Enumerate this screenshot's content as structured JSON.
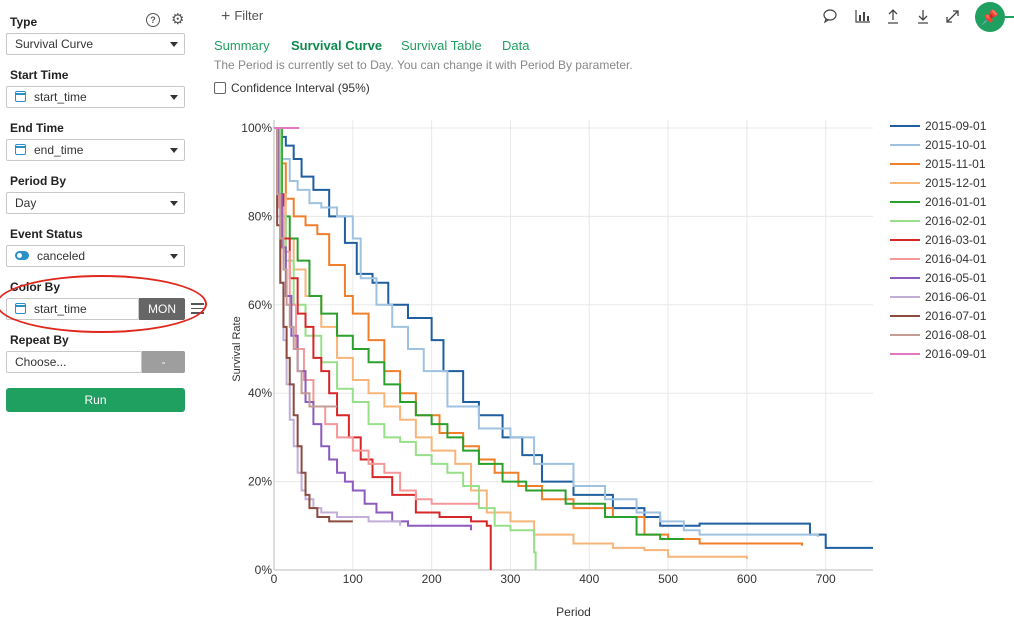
{
  "sidebar": {
    "type": {
      "label": "Type",
      "value": "Survival Curve"
    },
    "start_time": {
      "label": "Start Time",
      "value": "start_time"
    },
    "end_time": {
      "label": "End Time",
      "value": "end_time"
    },
    "period_by": {
      "label": "Period By",
      "value": "Day"
    },
    "event_status": {
      "label": "Event Status",
      "value": "canceled"
    },
    "color_by": {
      "label": "Color By",
      "value": "start_time",
      "unit": "MON"
    },
    "repeat_by": {
      "label": "Repeat By",
      "placeholder": "Choose...",
      "btn": "-"
    },
    "run_label": "Run"
  },
  "toolbar": {
    "filter_label": "Filter"
  },
  "tabs": [
    "Summary",
    "Survival Curve",
    "Survival Table",
    "Data"
  ],
  "active_tab": "Survival Curve",
  "info_text": "The Period is currently set to Day. You can change it with Period By parameter.",
  "confidence_label": "Confidence Interval (95%)",
  "icons": [
    "help-icon",
    "gear-icon",
    "plus-icon",
    "comment-icon",
    "chart-icon",
    "upload-icon",
    "download-icon",
    "expand-icon",
    "pin-icon",
    "menu-icon",
    "calendar-icon",
    "toggle-icon"
  ],
  "chart_data": {
    "type": "line",
    "xlabel": "Period",
    "ylabel": "Survival Rate",
    "xlim": [
      0,
      760
    ],
    "ylim": [
      0,
      1
    ],
    "xticks": [
      0,
      100,
      200,
      300,
      400,
      500,
      600,
      700
    ],
    "yticks": [
      0,
      0.2,
      0.4,
      0.6,
      0.8,
      1.0
    ],
    "ytick_labels": [
      "0%",
      "20%",
      "40%",
      "60%",
      "80%",
      "100%"
    ],
    "grid": true,
    "legend": "right",
    "series": [
      {
        "name": "2015-09-01",
        "color": "#1f5fa0",
        "points": [
          [
            0,
            1.0
          ],
          [
            5,
            0.98
          ],
          [
            15,
            0.96
          ],
          [
            25,
            0.93
          ],
          [
            35,
            0.89
          ],
          [
            50,
            0.86
          ],
          [
            70,
            0.8
          ],
          [
            90,
            0.74
          ],
          [
            105,
            0.67
          ],
          [
            125,
            0.65
          ],
          [
            145,
            0.6
          ],
          [
            170,
            0.57
          ],
          [
            200,
            0.52
          ],
          [
            215,
            0.45
          ],
          [
            240,
            0.38
          ],
          [
            260,
            0.35
          ],
          [
            290,
            0.3
          ],
          [
            315,
            0.26
          ],
          [
            340,
            0.2
          ],
          [
            380,
            0.17
          ],
          [
            430,
            0.14
          ],
          [
            470,
            0.12
          ],
          [
            490,
            0.1
          ],
          [
            540,
            0.105
          ],
          [
            680,
            0.08
          ],
          [
            700,
            0.05
          ],
          [
            760,
            0.05
          ]
        ]
      },
      {
        "name": "2015-10-01",
        "color": "#9fc2e0",
        "points": [
          [
            0,
            1.0
          ],
          [
            10,
            0.93
          ],
          [
            20,
            0.88
          ],
          [
            30,
            0.86
          ],
          [
            45,
            0.83
          ],
          [
            60,
            0.82
          ],
          [
            80,
            0.8
          ],
          [
            100,
            0.75
          ],
          [
            110,
            0.66
          ],
          [
            130,
            0.6
          ],
          [
            150,
            0.55
          ],
          [
            170,
            0.5
          ],
          [
            190,
            0.45
          ],
          [
            220,
            0.37
          ],
          [
            260,
            0.32
          ],
          [
            300,
            0.3
          ],
          [
            330,
            0.24
          ],
          [
            380,
            0.19
          ],
          [
            420,
            0.16
          ],
          [
            460,
            0.13
          ],
          [
            490,
            0.11
          ],
          [
            520,
            0.09
          ],
          [
            540,
            0.08
          ],
          [
            690,
            0.075
          ]
        ]
      },
      {
        "name": "2015-11-01",
        "color": "#f07f2b",
        "points": [
          [
            0,
            1.0
          ],
          [
            8,
            0.92
          ],
          [
            15,
            0.84
          ],
          [
            25,
            0.8
          ],
          [
            40,
            0.78
          ],
          [
            55,
            0.76
          ],
          [
            70,
            0.69
          ],
          [
            90,
            0.62
          ],
          [
            100,
            0.58
          ],
          [
            120,
            0.52
          ],
          [
            140,
            0.45
          ],
          [
            160,
            0.4
          ],
          [
            180,
            0.35
          ],
          [
            210,
            0.31
          ],
          [
            240,
            0.28
          ],
          [
            260,
            0.25
          ],
          [
            280,
            0.22
          ],
          [
            310,
            0.19
          ],
          [
            340,
            0.16
          ],
          [
            380,
            0.14
          ],
          [
            430,
            0.12
          ],
          [
            470,
            0.08
          ],
          [
            500,
            0.07
          ],
          [
            540,
            0.06
          ],
          [
            670,
            0.055
          ]
        ]
      },
      {
        "name": "2015-12-01",
        "color": "#f7b57a",
        "points": [
          [
            0,
            1.0
          ],
          [
            8,
            0.85
          ],
          [
            15,
            0.75
          ],
          [
            25,
            0.68
          ],
          [
            40,
            0.62
          ],
          [
            60,
            0.55
          ],
          [
            80,
            0.48
          ],
          [
            100,
            0.43
          ],
          [
            120,
            0.4
          ],
          [
            140,
            0.37
          ],
          [
            160,
            0.34
          ],
          [
            180,
            0.3
          ],
          [
            200,
            0.27
          ],
          [
            230,
            0.24
          ],
          [
            250,
            0.18
          ],
          [
            270,
            0.13
          ],
          [
            300,
            0.11
          ],
          [
            330,
            0.08
          ],
          [
            380,
            0.06
          ],
          [
            430,
            0.05
          ],
          [
            470,
            0.045
          ],
          [
            500,
            0.03
          ],
          [
            600,
            0.025
          ]
        ]
      },
      {
        "name": "2016-01-01",
        "color": "#2ca02c",
        "points": [
          [
            0,
            1.0
          ],
          [
            10,
            0.8
          ],
          [
            20,
            0.75
          ],
          [
            30,
            0.7
          ],
          [
            45,
            0.62
          ],
          [
            60,
            0.58
          ],
          [
            80,
            0.53
          ],
          [
            100,
            0.5
          ],
          [
            120,
            0.47
          ],
          [
            140,
            0.42
          ],
          [
            160,
            0.38
          ],
          [
            180,
            0.35
          ],
          [
            200,
            0.33
          ],
          [
            220,
            0.3
          ],
          [
            240,
            0.27
          ],
          [
            260,
            0.24
          ],
          [
            290,
            0.2
          ],
          [
            320,
            0.18
          ],
          [
            370,
            0.15
          ],
          [
            420,
            0.12
          ],
          [
            460,
            0.08
          ],
          [
            490,
            0.07
          ],
          [
            520,
            0.07
          ]
        ]
      },
      {
        "name": "2016-02-01",
        "color": "#98df8a",
        "points": [
          [
            0,
            1.0
          ],
          [
            8,
            0.8
          ],
          [
            15,
            0.7
          ],
          [
            25,
            0.6
          ],
          [
            40,
            0.53
          ],
          [
            60,
            0.47
          ],
          [
            80,
            0.41
          ],
          [
            100,
            0.38
          ],
          [
            120,
            0.33
          ],
          [
            140,
            0.3
          ],
          [
            160,
            0.29
          ],
          [
            180,
            0.26
          ],
          [
            200,
            0.24
          ],
          [
            220,
            0.22
          ],
          [
            240,
            0.19
          ],
          [
            260,
            0.14
          ],
          [
            280,
            0.1
          ],
          [
            300,
            0.09
          ],
          [
            330,
            0.04
          ],
          [
            332,
            0.0
          ]
        ]
      },
      {
        "name": "2016-03-01",
        "color": "#d62728",
        "points": [
          [
            0,
            1.0
          ],
          [
            6,
            0.85
          ],
          [
            12,
            0.75
          ],
          [
            20,
            0.66
          ],
          [
            30,
            0.58
          ],
          [
            40,
            0.55
          ],
          [
            50,
            0.48
          ],
          [
            60,
            0.45
          ],
          [
            70,
            0.4
          ],
          [
            80,
            0.35
          ],
          [
            95,
            0.3
          ],
          [
            110,
            0.25
          ],
          [
            125,
            0.21
          ],
          [
            150,
            0.17
          ],
          [
            180,
            0.13
          ],
          [
            210,
            0.12
          ],
          [
            250,
            0.11
          ],
          [
            270,
            0.1
          ],
          [
            275,
            0.0
          ]
        ]
      },
      {
        "name": "2016-04-01",
        "color": "#f4989a",
        "points": [
          [
            0,
            1.0
          ],
          [
            6,
            0.82
          ],
          [
            12,
            0.72
          ],
          [
            20,
            0.6
          ],
          [
            28,
            0.5
          ],
          [
            38,
            0.43
          ],
          [
            50,
            0.37
          ],
          [
            65,
            0.33
          ],
          [
            80,
            0.3
          ],
          [
            100,
            0.27
          ],
          [
            120,
            0.24
          ],
          [
            140,
            0.22
          ],
          [
            160,
            0.18
          ],
          [
            180,
            0.16
          ],
          [
            200,
            0.15
          ],
          [
            260,
            0.15
          ]
        ]
      },
      {
        "name": "2016-05-01",
        "color": "#8c5bbd",
        "points": [
          [
            0,
            1.0
          ],
          [
            5,
            0.85
          ],
          [
            10,
            0.73
          ],
          [
            15,
            0.62
          ],
          [
            22,
            0.53
          ],
          [
            30,
            0.45
          ],
          [
            40,
            0.38
          ],
          [
            50,
            0.33
          ],
          [
            60,
            0.28
          ],
          [
            70,
            0.25
          ],
          [
            80,
            0.22
          ],
          [
            90,
            0.2
          ],
          [
            100,
            0.18
          ],
          [
            115,
            0.15
          ],
          [
            130,
            0.13
          ],
          [
            150,
            0.11
          ],
          [
            170,
            0.1
          ],
          [
            250,
            0.09
          ]
        ]
      },
      {
        "name": "2016-06-01",
        "color": "#c3aed8",
        "points": [
          [
            0,
            1.0
          ],
          [
            4,
            0.8
          ],
          [
            8,
            0.65
          ],
          [
            12,
            0.52
          ],
          [
            16,
            0.42
          ],
          [
            20,
            0.34
          ],
          [
            25,
            0.28
          ],
          [
            30,
            0.22
          ],
          [
            35,
            0.18
          ],
          [
            40,
            0.16
          ],
          [
            50,
            0.14
          ],
          [
            60,
            0.13
          ],
          [
            80,
            0.12
          ],
          [
            120,
            0.11
          ],
          [
            160,
            0.1
          ]
        ]
      },
      {
        "name": "2016-07-01",
        "color": "#8b4b3f",
        "points": [
          [
            0,
            1.0
          ],
          [
            4,
            0.78
          ],
          [
            8,
            0.65
          ],
          [
            12,
            0.55
          ],
          [
            16,
            0.48
          ],
          [
            20,
            0.42
          ],
          [
            25,
            0.35
          ],
          [
            30,
            0.28
          ],
          [
            35,
            0.22
          ],
          [
            40,
            0.17
          ],
          [
            45,
            0.14
          ],
          [
            55,
            0.12
          ],
          [
            70,
            0.11
          ],
          [
            100,
            0.11
          ]
        ]
      },
      {
        "name": "2016-08-01",
        "color": "#c49c94",
        "points": [
          [
            0,
            1.0
          ],
          [
            4,
            0.85
          ],
          [
            8,
            0.75
          ],
          [
            12,
            0.68
          ],
          [
            16,
            0.6
          ],
          [
            20,
            0.55
          ],
          [
            25,
            0.5
          ],
          [
            30,
            0.45
          ],
          [
            35,
            0.4
          ],
          [
            45,
            0.37
          ],
          [
            60,
            0.37
          ],
          [
            80,
            0.37
          ]
        ]
      },
      {
        "name": "2016-09-01",
        "color": "#e377c2",
        "points": [
          [
            0,
            1.0
          ],
          [
            32,
            1.0
          ]
        ]
      }
    ]
  }
}
